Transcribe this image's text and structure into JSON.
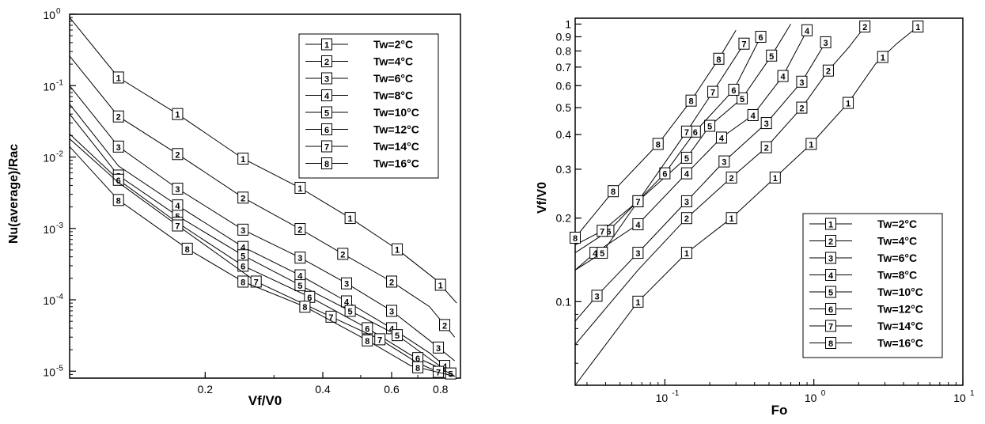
{
  "figure": {
    "left_xlabel": "Vf/V0",
    "left_ylabel": "Nu(average)/Rac",
    "right_xlabel": "Fo",
    "right_ylabel": "Vf/V0"
  },
  "chart_data": [
    {
      "type": "line",
      "xlabel": "Vf/V0",
      "ylabel": "Nu(average)/Rac",
      "xscale": "log",
      "yscale": "log",
      "xlim": [
        0.09,
        0.9
      ],
      "ylim": [
        8e-06,
        1
      ],
      "x_ticks": [
        0.2,
        0.4,
        0.6,
        0.8
      ],
      "x_tick_labels": [
        "0.2",
        "0.4",
        "0.6",
        "0.8"
      ],
      "y_ticks": [
        1e-05,
        0.0001,
        0.001,
        0.01,
        0.1,
        1
      ],
      "y_tick_labels": [
        {
          "base": "10",
          "exp": "-5"
        },
        {
          "base": "10",
          "exp": "-4"
        },
        {
          "base": "10",
          "exp": "-3"
        },
        {
          "base": "10",
          "exp": "-2"
        },
        {
          "base": "10",
          "exp": "-1"
        },
        {
          "base": "10",
          "exp": "0"
        }
      ],
      "grid": false,
      "legend_position": "top-right",
      "series": [
        {
          "name": "Tw=2°C",
          "marker": "1",
          "x": [
            0.09,
            0.12,
            0.17,
            0.25,
            0.35,
            0.47,
            0.62,
            0.78,
            0.88
          ],
          "y": [
            0.9,
            0.13,
            0.04,
            0.0095,
            0.0037,
            0.0014,
            0.00051,
            0.00019,
            9e-05
          ],
          "marker_x": [
            0.12,
            0.17,
            0.25,
            0.35,
            0.47,
            0.62,
            0.8
          ]
        },
        {
          "name": "Tw=4°C",
          "marker": "2",
          "x": [
            0.09,
            0.12,
            0.17,
            0.25,
            0.35,
            0.45,
            0.6,
            0.75,
            0.87
          ],
          "y": [
            0.26,
            0.037,
            0.011,
            0.0027,
            0.00098,
            0.00044,
            0.00018,
            8e-05,
            3e-05
          ],
          "marker_x": [
            0.12,
            0.17,
            0.25,
            0.35,
            0.45,
            0.6,
            0.82
          ]
        },
        {
          "name": "Tw=6°C",
          "marker": "3",
          "x": [
            0.09,
            0.12,
            0.17,
            0.25,
            0.35,
            0.46,
            0.6,
            0.75,
            0.87
          ],
          "y": [
            0.1,
            0.014,
            0.0036,
            0.00096,
            0.00039,
            0.00017,
            7e-05,
            2.7e-05,
            1.4e-05
          ],
          "marker_x": [
            0.12,
            0.17,
            0.25,
            0.35,
            0.46,
            0.6,
            0.79
          ]
        },
        {
          "name": "Tw=8°C",
          "marker": "4",
          "x": [
            0.09,
            0.12,
            0.17,
            0.25,
            0.35,
            0.46,
            0.6,
            0.75,
            0.87
          ],
          "y": [
            0.055,
            0.0075,
            0.0021,
            0.00055,
            0.00022,
            9.5e-05,
            4e-05,
            1.8e-05,
            9e-06
          ],
          "marker_x": [
            0.17,
            0.25,
            0.35,
            0.46,
            0.6,
            0.82
          ]
        },
        {
          "name": "Tw=10°C",
          "marker": "5",
          "x": [
            0.09,
            0.12,
            0.17,
            0.25,
            0.35,
            0.47,
            0.62,
            0.75,
            0.87
          ],
          "y": [
            0.04,
            0.0055,
            0.0015,
            0.00042,
            0.00016,
            7e-05,
            3.2e-05,
            1.5e-05,
            8.5e-06
          ],
          "marker_x": [
            0.12,
            0.17,
            0.25,
            0.35,
            0.47,
            0.62,
            0.85
          ]
        },
        {
          "name": "Tw=12°C",
          "marker": "6",
          "x": [
            0.09,
            0.12,
            0.17,
            0.25,
            0.37,
            0.52,
            0.67,
            0.8,
            0.87
          ],
          "y": [
            0.021,
            0.0048,
            0.0012,
            0.0003,
            0.00011,
            4e-05,
            1.7e-05,
            1.1e-05,
            8.5e-06
          ],
          "marker_x": [
            0.12,
            0.17,
            0.25,
            0.37,
            0.52,
            0.7
          ]
        },
        {
          "name": "Tw=14°C",
          "marker": "7",
          "x": [
            0.09,
            0.12,
            0.17,
            0.27,
            0.42,
            0.56,
            0.7,
            0.8,
            0.87
          ],
          "y": [
            0.018,
            0.0044,
            0.0011,
            0.00018,
            5.8e-05,
            2.8e-05,
            1.3e-05,
            9.5e-06,
            8.5e-06
          ],
          "marker_x": [
            0.17,
            0.27,
            0.42,
            0.56,
            0.79
          ]
        },
        {
          "name": "Tw=16°C",
          "marker": "8",
          "x": [
            0.09,
            0.12,
            0.18,
            0.25,
            0.36,
            0.52,
            0.67,
            0.8,
            0.87
          ],
          "y": [
            0.014,
            0.0025,
            0.00052,
            0.00018,
            8e-05,
            2.7e-05,
            1.2e-05,
            9.5e-06,
            8.5e-06
          ],
          "marker_x": [
            0.12,
            0.18,
            0.25,
            0.36,
            0.52,
            0.7
          ]
        }
      ]
    },
    {
      "type": "line",
      "xlabel": "Fo",
      "ylabel": "Vf/V0",
      "xscale": "log",
      "yscale": "log",
      "xlim": [
        0.025,
        10
      ],
      "ylim": [
        0.05,
        1.05
      ],
      "x_ticks": [
        0.1,
        1,
        10
      ],
      "x_tick_labels": [
        {
          "base": "10",
          "exp": "-1"
        },
        {
          "base": "10",
          "exp": "0"
        },
        {
          "base": "10",
          "exp": "1"
        }
      ],
      "y_ticks": [
        0.1,
        0.2,
        0.3,
        0.4,
        0.5,
        0.6,
        0.7,
        0.8,
        0.9,
        1
      ],
      "y_tick_labels": [
        "0.1",
        "0.2",
        "0.3",
        "0.4",
        "0.5",
        "0.6",
        "0.7",
        "0.8",
        "0.9",
        "1"
      ],
      "grid": false,
      "legend_position": "bottom-right",
      "series": [
        {
          "name": "Tw=2°C",
          "marker": "1",
          "x": [
            0.025,
            0.066,
            0.14,
            0.28,
            0.55,
            0.96,
            1.7,
            2.6,
            3.6,
            5.0
          ],
          "y": [
            0.05,
            0.1,
            0.15,
            0.2,
            0.28,
            0.37,
            0.52,
            0.72,
            0.85,
            0.98
          ],
          "marker_x": [
            0.066,
            0.14,
            0.28,
            0.55,
            0.96,
            1.7,
            2.9,
            5.0
          ]
        },
        {
          "name": "Tw=4°C",
          "marker": "2",
          "x": [
            0.025,
            0.066,
            0.14,
            0.28,
            0.48,
            0.83,
            1.25,
            1.7,
            2.2
          ],
          "y": [
            0.07,
            0.13,
            0.2,
            0.28,
            0.36,
            0.5,
            0.68,
            0.82,
            0.98
          ],
          "marker_x": [
            0.14,
            0.28,
            0.48,
            0.83,
            1.25,
            2.2
          ]
        },
        {
          "name": "Tw=6°C",
          "marker": "3",
          "x": [
            0.025,
            0.035,
            0.066,
            0.14,
            0.25,
            0.48,
            0.83,
            1.2
          ],
          "y": [
            0.085,
            0.105,
            0.15,
            0.23,
            0.32,
            0.44,
            0.62,
            0.86
          ],
          "marker_x": [
            0.035,
            0.066,
            0.14,
            0.25,
            0.48,
            0.83,
            1.2
          ]
        },
        {
          "name": "Tw=8°C",
          "marker": "4",
          "x": [
            0.025,
            0.034,
            0.066,
            0.14,
            0.24,
            0.39,
            0.62,
            0.9
          ],
          "y": [
            0.13,
            0.15,
            0.19,
            0.29,
            0.39,
            0.47,
            0.65,
            0.95
          ],
          "marker_x": [
            0.034,
            0.066,
            0.14,
            0.24,
            0.39,
            0.62,
            0.9
          ]
        },
        {
          "name": "Tw=10°C",
          "marker": "5",
          "x": [
            0.025,
            0.038,
            0.066,
            0.14,
            0.2,
            0.33,
            0.52,
            0.7
          ],
          "y": [
            0.13,
            0.15,
            0.23,
            0.33,
            0.43,
            0.54,
            0.77,
            1.0
          ],
          "marker_x": [
            0.038,
            0.066,
            0.14,
            0.2,
            0.33,
            0.52
          ]
        },
        {
          "name": "Tw=12°C",
          "marker": "6",
          "x": [
            0.025,
            0.042,
            0.1,
            0.16,
            0.29,
            0.44
          ],
          "y": [
            0.15,
            0.18,
            0.29,
            0.41,
            0.58,
            0.9
          ],
          "marker_x": [
            0.042,
            0.1,
            0.16,
            0.29,
            0.44
          ]
        },
        {
          "name": "Tw=14°C",
          "marker": "7",
          "x": [
            0.025,
            0.038,
            0.066,
            0.14,
            0.21,
            0.34
          ],
          "y": [
            0.16,
            0.18,
            0.23,
            0.41,
            0.57,
            0.85
          ],
          "marker_x": [
            0.038,
            0.066,
            0.14,
            0.21,
            0.34
          ]
        },
        {
          "name": "Tw=16°C",
          "marker": "8",
          "x": [
            0.025,
            0.045,
            0.09,
            0.15,
            0.23,
            0.3
          ],
          "y": [
            0.17,
            0.25,
            0.37,
            0.53,
            0.75,
            0.95
          ],
          "marker_x": [
            0.025,
            0.045,
            0.09,
            0.15,
            0.23
          ]
        }
      ]
    }
  ]
}
